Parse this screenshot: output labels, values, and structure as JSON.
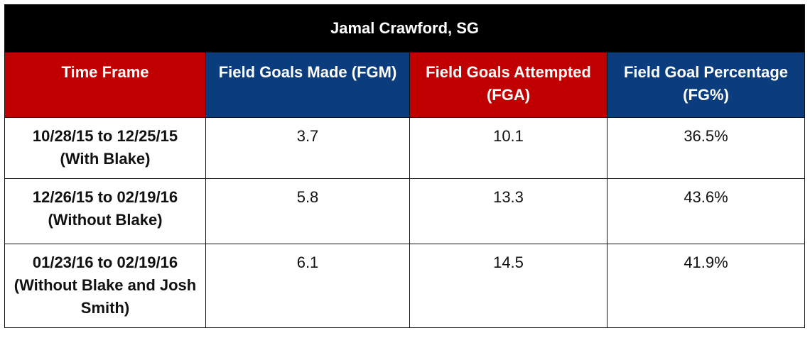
{
  "table": {
    "title": "Jamal Crawford, SG",
    "colors": {
      "title_bg": "#000000",
      "red_header": "#c00000",
      "blue_header": "#0b3d7e"
    },
    "headers": [
      "Time Frame",
      "Field Goals Made (FGM)",
      "Field Goals Attempted (FGA)",
      "Field Goal Percentage (FG%)"
    ],
    "rows": [
      [
        "10/28/15 to 12/25/15 (With Blake)",
        "3.7",
        "10.1",
        "36.5%"
      ],
      [
        "12/26/15 to 02/19/16 (Without Blake)",
        "5.8",
        "13.3",
        "43.6%"
      ],
      [
        "01/23/16 to 02/19/16 (Without Blake and Josh Smith)",
        "6.1",
        "14.5",
        "41.9%"
      ]
    ]
  }
}
